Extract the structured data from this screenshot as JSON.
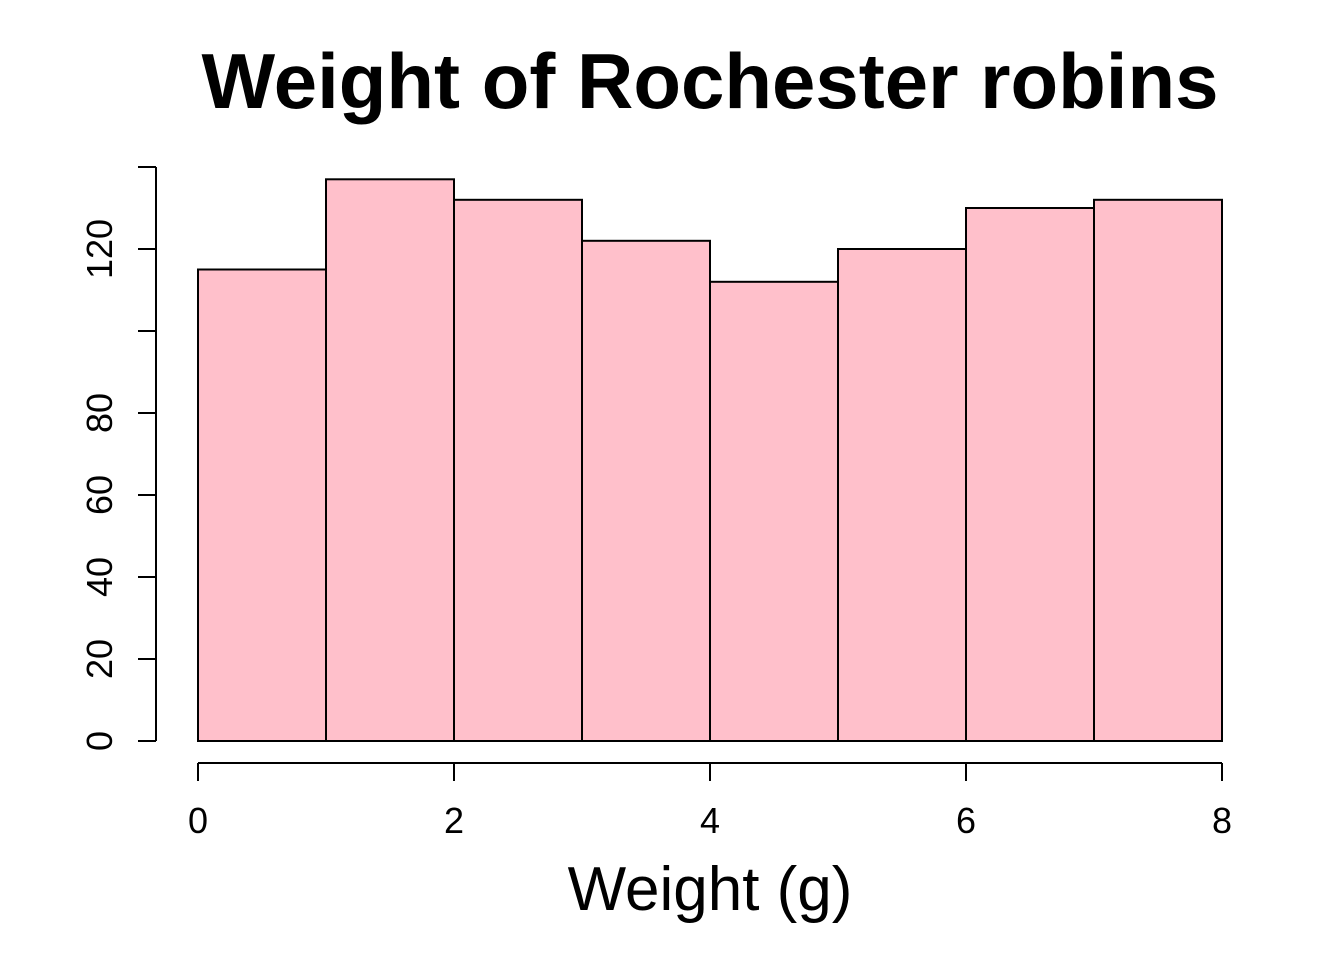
{
  "chart_data": {
    "type": "bar",
    "subtype": "histogram",
    "title": "Weight of Rochester robins",
    "xlabel": "Weight (g)",
    "ylabel": "",
    "bin_edges": [
      0,
      1,
      2,
      3,
      4,
      5,
      6,
      7,
      8
    ],
    "values": [
      115,
      137,
      132,
      122,
      112,
      120,
      130,
      132
    ],
    "xlim": [
      0,
      8
    ],
    "ylim": [
      0,
      140
    ],
    "x_ticks": [
      0,
      2,
      4,
      6,
      8
    ],
    "x_tick_labels": [
      "0",
      "2",
      "4",
      "6",
      "8"
    ],
    "y_ticks": [
      0,
      20,
      40,
      60,
      80,
      100,
      120,
      140
    ],
    "y_tick_labels": [
      "0",
      "20",
      "40",
      "60",
      "80",
      "",
      "120",
      ""
    ],
    "bar_color": "#FFC0CB",
    "edge_color": "#000000",
    "grid": false,
    "legend": "none"
  }
}
